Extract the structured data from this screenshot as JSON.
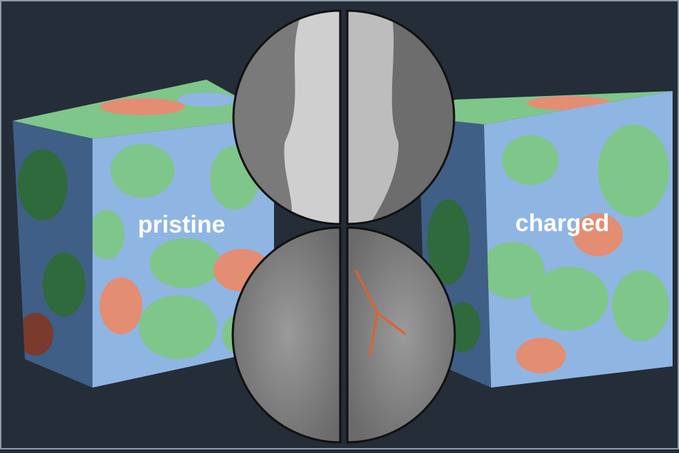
{
  "labels": {
    "left": "pristine",
    "right": "charged"
  }
}
